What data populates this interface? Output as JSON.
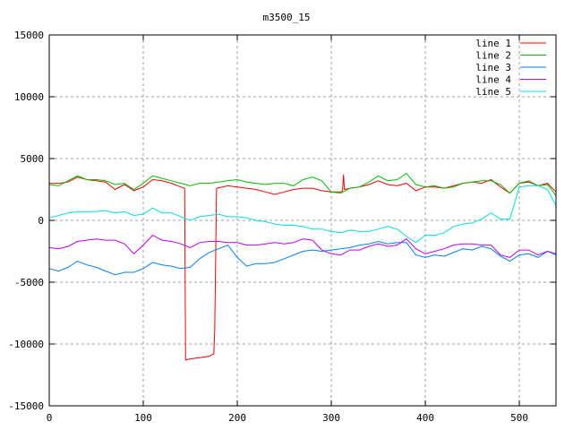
{
  "chart_data": {
    "type": "line",
    "title": "m3500_15",
    "xlabel": "",
    "ylabel": "",
    "xlim": [
      0,
      539
    ],
    "ylim": [
      -15000,
      15000
    ],
    "xticks": [
      0,
      100,
      200,
      300,
      400,
      500
    ],
    "yticks": [
      -15000,
      -10000,
      -5000,
      0,
      5000,
      10000,
      15000
    ],
    "grid": true,
    "legend_position": "top-right",
    "x": [
      0,
      10,
      20,
      30,
      40,
      50,
      60,
      70,
      80,
      90,
      100,
      110,
      120,
      130,
      140,
      150,
      160,
      170,
      180,
      190,
      200,
      210,
      220,
      230,
      240,
      250,
      260,
      270,
      280,
      290,
      300,
      310,
      320,
      330,
      340,
      350,
      360,
      370,
      380,
      390,
      400,
      410,
      420,
      430,
      440,
      450,
      460,
      470,
      480,
      490,
      500,
      510,
      520,
      530,
      539
    ],
    "series": [
      {
        "name": "line 1",
        "color": "#ff0000",
        "x": [
          0,
          10,
          20,
          30,
          40,
          50,
          60,
          70,
          80,
          90,
          100,
          110,
          120,
          130,
          140,
          144,
          145,
          150,
          160,
          170,
          175,
          176,
          178,
          190,
          200,
          210,
          220,
          230,
          240,
          250,
          260,
          270,
          280,
          290,
          300,
          310,
          312,
          313,
          314,
          320,
          330,
          340,
          350,
          360,
          370,
          380,
          390,
          400,
          410,
          420,
          430,
          440,
          450,
          460,
          470,
          480,
          490,
          500,
          510,
          520,
          530,
          539
        ],
        "values": [
          3000,
          3000,
          3100,
          3500,
          3300,
          3200,
          3100,
          2500,
          2900,
          2400,
          2700,
          3300,
          3200,
          3000,
          2700,
          2600,
          -11300,
          -11200,
          -11100,
          -11000,
          -10800,
          -9000,
          2600,
          2800,
          2700,
          2600,
          2500,
          2300,
          2100,
          2300,
          2500,
          2600,
          2600,
          2400,
          2300,
          2300,
          2400,
          3700,
          2500,
          2600,
          2700,
          2900,
          3200,
          2900,
          2800,
          3000,
          2400,
          2700,
          2700,
          2600,
          2800,
          3000,
          3100,
          3000,
          3300,
          2700,
          2200,
          3000,
          3100,
          2800,
          3000,
          2300
        ]
      },
      {
        "name": "line 2",
        "color": "#00c000",
        "values": [
          2900,
          2800,
          3200,
          3600,
          3300,
          3300,
          3200,
          2900,
          3000,
          2500,
          3000,
          3600,
          3400,
          3200,
          3000,
          2800,
          3000,
          3000,
          3100,
          3200,
          3300,
          3100,
          3000,
          2900,
          3000,
          3000,
          2800,
          3300,
          3500,
          3200,
          2300,
          2200,
          2600,
          2700,
          3100,
          3600,
          3200,
          3300,
          3800,
          2900,
          2700,
          2800,
          2600,
          2700,
          3000,
          3100,
          3200,
          3200,
          2900,
          2200,
          3000,
          3200,
          2800,
          2900,
          2000
        ]
      },
      {
        "name": "line 3",
        "color": "#0080ff",
        "values": [
          -3900,
          -4100,
          -3800,
          -3300,
          -3600,
          -3800,
          -4100,
          -4400,
          -4200,
          -4200,
          -3900,
          -3400,
          -3600,
          -3700,
          -3900,
          -3800,
          -3100,
          -2600,
          -2300,
          -2000,
          -3000,
          -3700,
          -3500,
          -3500,
          -3400,
          -3100,
          -2800,
          -2500,
          -2400,
          -2500,
          -2400,
          -2300,
          -2200,
          -2000,
          -1900,
          -1700,
          -1900,
          -1800,
          -1800,
          -2800,
          -3000,
          -2800,
          -2900,
          -2600,
          -2300,
          -2400,
          -2100,
          -2300,
          -2900,
          -3300,
          -2800,
          -2700,
          -3000,
          -2500,
          -2800
        ]
      },
      {
        "name": "line 4",
        "color": "#c000ff",
        "values": [
          -2200,
          -2300,
          -2100,
          -1700,
          -1600,
          -1500,
          -1600,
          -1600,
          -1900,
          -2700,
          -2000,
          -1200,
          -1600,
          -1700,
          -1900,
          -2200,
          -1800,
          -1700,
          -1700,
          -1800,
          -1800,
          -2000,
          -2000,
          -1900,
          -1800,
          -1900,
          -1800,
          -1500,
          -1600,
          -2400,
          -2700,
          -2800,
          -2400,
          -2400,
          -2100,
          -1900,
          -2100,
          -2000,
          -1500,
          -2300,
          -2700,
          -2500,
          -2300,
          -2000,
          -1900,
          -1900,
          -2000,
          -2000,
          -2800,
          -3000,
          -2400,
          -2400,
          -2800,
          -2500,
          -2700
        ]
      },
      {
        "name": "line 5",
        "color": "#00e0e0",
        "values": [
          200,
          400,
          600,
          700,
          700,
          700,
          800,
          600,
          700,
          400,
          500,
          1000,
          600,
          600,
          300,
          0,
          300,
          400,
          500,
          300,
          300,
          200,
          0,
          -100,
          -300,
          -400,
          -400,
          -500,
          -700,
          -700,
          -900,
          -1000,
          -800,
          -900,
          -900,
          -700,
          -500,
          -700,
          -1300,
          -1800,
          -1200,
          -1200,
          -1000,
          -500,
          -300,
          -200,
          100,
          600,
          100,
          100,
          2700,
          2800,
          2800,
          2500,
          1200
        ]
      }
    ]
  }
}
